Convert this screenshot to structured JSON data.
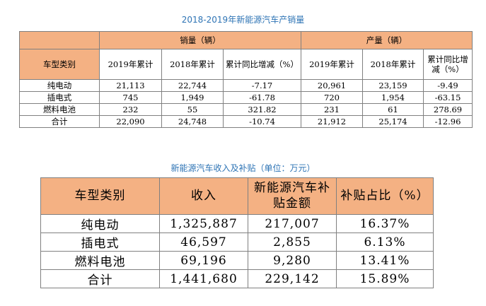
{
  "table1": {
    "title": "2018-2019年新能源汽车产销量",
    "group_headers": [
      "销量（辆）",
      "产量（辆）"
    ],
    "row_header": "车型类别",
    "sub_headers": [
      "2019年累计",
      "2018年累计",
      "累计同比增减（%）",
      "2019年累计",
      "2018年累计",
      "累计同比增减（%）"
    ],
    "rows": [
      [
        "纯电动",
        "21,113",
        "22,744",
        "-7.17",
        "20,961",
        "23,159",
        "-9.49"
      ],
      [
        "插电式",
        "745",
        "1,949",
        "-61.78",
        "720",
        "1,954",
        "-63.15"
      ],
      [
        "燃料电池",
        "232",
        "55",
        "321.82",
        "231",
        "61",
        "278.69"
      ],
      [
        "合计",
        "22,090",
        "24,748",
        "-10.74",
        "21,912",
        "25,174",
        "-12.96"
      ]
    ]
  },
  "table2": {
    "title": "新能源汽车收入及补贴（单位：万元）",
    "headers": [
      "车型类别",
      "收入",
      "新能源汽车补贴金额",
      "补贴占比（%）"
    ],
    "rows": [
      [
        "纯电动",
        "1,325,887",
        "217,007",
        "16.37%"
      ],
      [
        "插电式",
        "46,597",
        "2,855",
        "6.13%"
      ],
      [
        "燃料电池",
        "69,196",
        "9,280",
        "13.41%"
      ],
      [
        "合计",
        "1,441,680",
        "229,142",
        "15.89%"
      ]
    ]
  }
}
